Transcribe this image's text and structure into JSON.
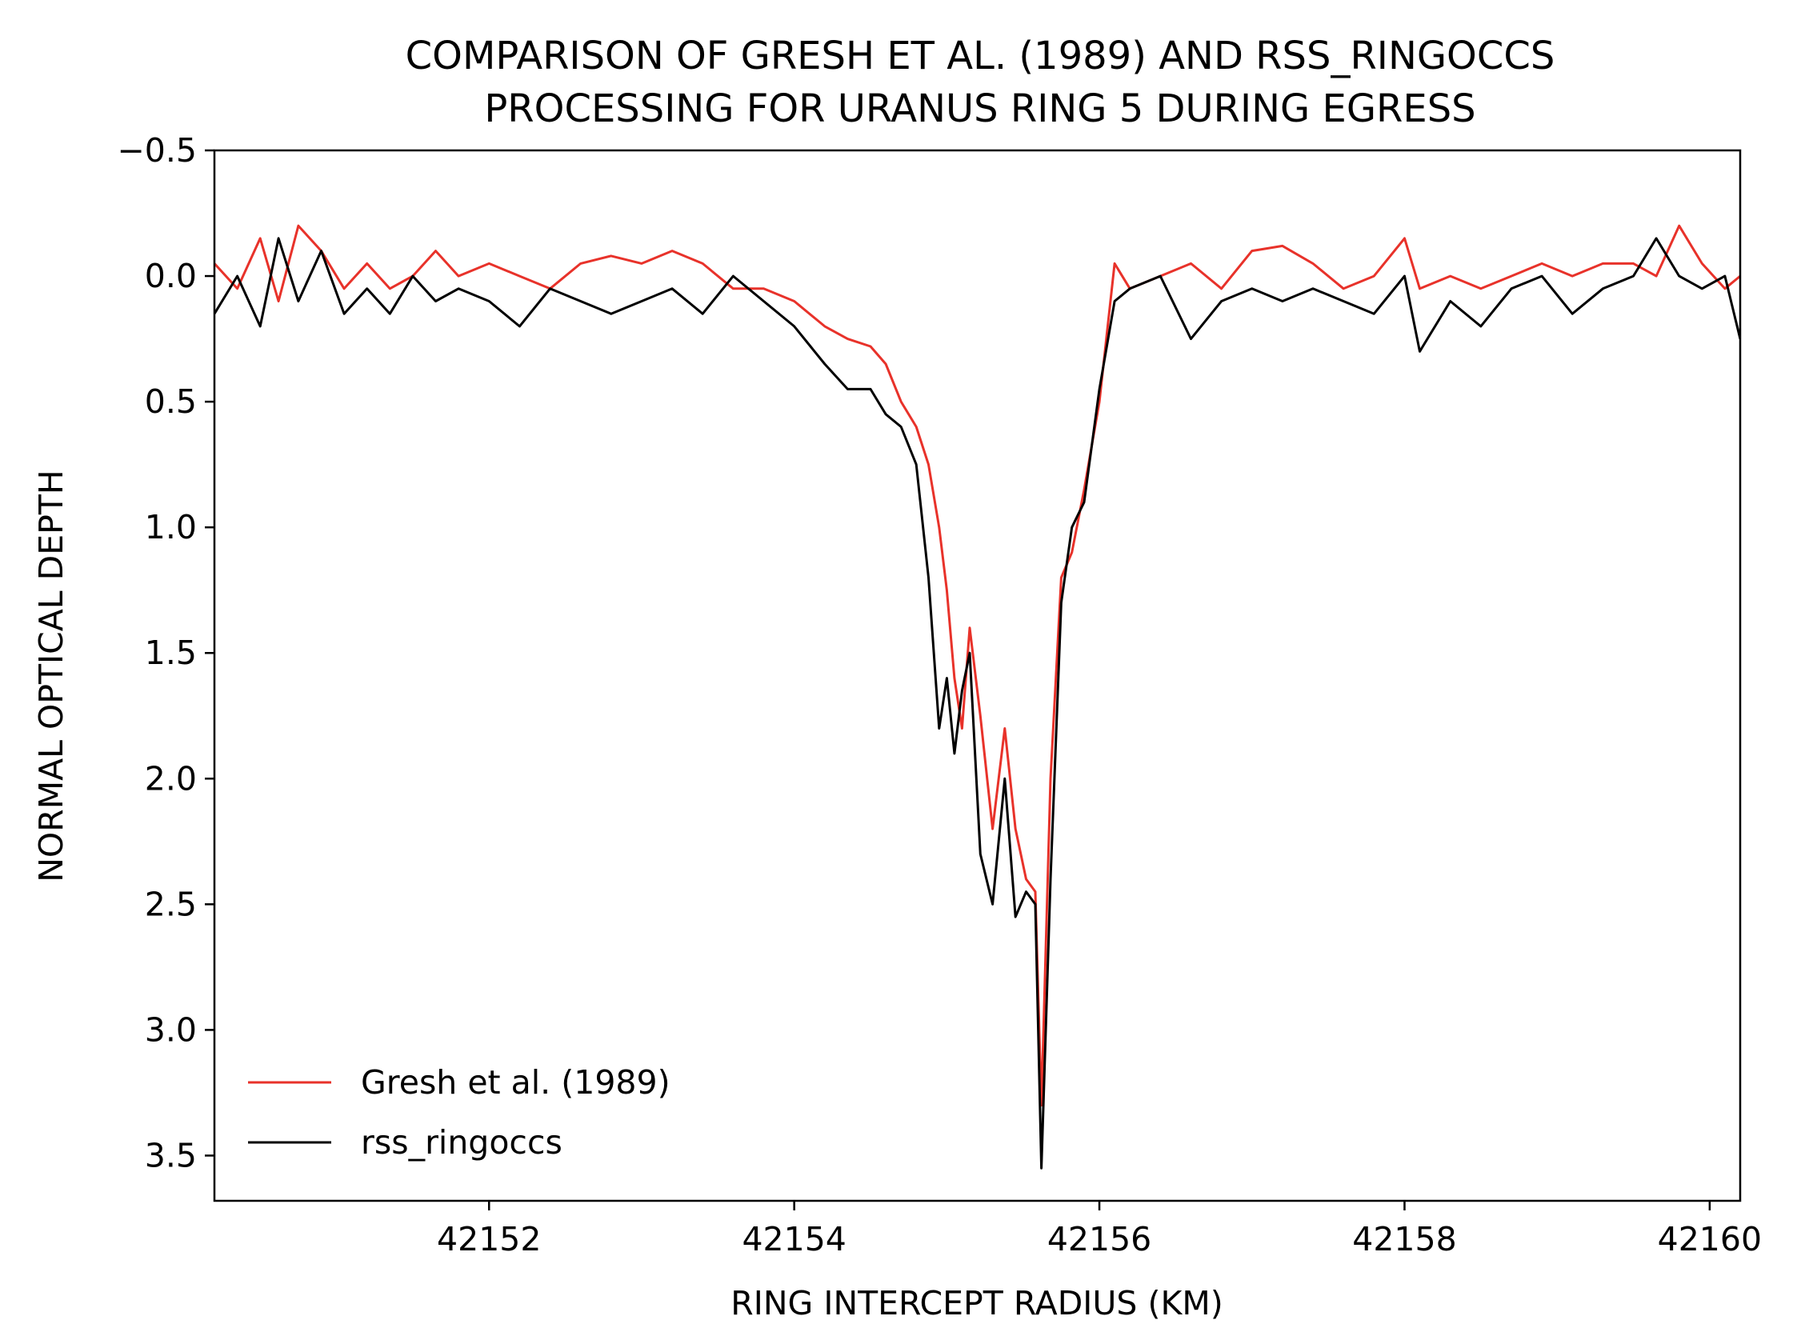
{
  "chart_data": {
    "type": "line",
    "title": "COMPARISON OF GRESH ET AL. (1989) AND RSS_RINGOCCS PROCESSING FOR URANUS RING 5 DURING EGRESS",
    "title_lines": [
      "COMPARISON OF GRESH ET AL. (1989) AND RSS_RINGOCCS",
      "PROCESSING FOR URANUS RING 5 DURING EGRESS"
    ],
    "xlabel": "RING INTERCEPT RADIUS (KM)",
    "ylabel": "NORMAL OPTICAL DEPTH",
    "xlim": [
      42150.2,
      42160.2
    ],
    "ylim": [
      3.68,
      -0.5
    ],
    "y_inverted": true,
    "xticks": [
      42152,
      42154,
      42156,
      42158,
      42160
    ],
    "xtick_labels": [
      "42152",
      "42154",
      "42156",
      "42158",
      "42160"
    ],
    "yticks": [
      -0.5,
      0.0,
      0.5,
      1.0,
      1.5,
      2.0,
      2.5,
      3.0,
      3.5
    ],
    "ytick_labels": [
      "−0.5",
      "0.0",
      "0.5",
      "1.0",
      "1.5",
      "2.0",
      "2.5",
      "3.0",
      "3.5"
    ],
    "grid": false,
    "legend_position": "lower-left",
    "series": [
      {
        "name": "Gresh et al. (1989)",
        "color": "#e8322a",
        "x": [
          42150.2,
          42150.35,
          42150.5,
          42150.62,
          42150.75,
          42150.9,
          42151.05,
          42151.2,
          42151.35,
          42151.5,
          42151.65,
          42151.8,
          42152.0,
          42152.2,
          42152.4,
          42152.6,
          42152.8,
          42153.0,
          42153.2,
          42153.4,
          42153.6,
          42153.8,
          42154.0,
          42154.2,
          42154.35,
          42154.5,
          42154.6,
          42154.7,
          42154.8,
          42154.88,
          42154.95,
          42155.0,
          42155.05,
          42155.1,
          42155.15,
          42155.22,
          42155.3,
          42155.38,
          42155.45,
          42155.52,
          42155.58,
          42155.62,
          42155.68,
          42155.75,
          42155.82,
          42155.9,
          42156.0,
          42156.1,
          42156.2,
          42156.4,
          42156.6,
          42156.8,
          42157.0,
          42157.2,
          42157.4,
          42157.6,
          42157.8,
          42158.0,
          42158.1,
          42158.3,
          42158.5,
          42158.7,
          42158.9,
          42159.1,
          42159.3,
          42159.5,
          42159.65,
          42159.8,
          42159.95,
          42160.1,
          42160.2
        ],
        "y": [
          -0.05,
          0.05,
          -0.15,
          0.1,
          -0.2,
          -0.1,
          0.05,
          -0.05,
          0.05,
          0.0,
          -0.1,
          0.0,
          -0.05,
          0.0,
          0.05,
          -0.05,
          -0.08,
          -0.05,
          -0.1,
          -0.05,
          0.05,
          0.05,
          0.1,
          0.2,
          0.25,
          0.28,
          0.35,
          0.5,
          0.6,
          0.75,
          1.0,
          1.25,
          1.6,
          1.8,
          1.4,
          1.75,
          2.2,
          1.8,
          2.2,
          2.4,
          2.45,
          3.3,
          2.0,
          1.2,
          1.1,
          0.85,
          0.5,
          -0.05,
          0.05,
          0.0,
          -0.05,
          0.05,
          -0.1,
          -0.12,
          -0.05,
          0.05,
          0.0,
          -0.15,
          0.05,
          0.0,
          0.05,
          0.0,
          -0.05,
          0.0,
          -0.05,
          -0.05,
          0.0,
          -0.2,
          -0.05,
          0.05,
          0.0
        ]
      },
      {
        "name": "rss_ringoccs",
        "color": "#000000",
        "x": [
          42150.2,
          42150.35,
          42150.5,
          42150.62,
          42150.75,
          42150.9,
          42151.05,
          42151.2,
          42151.35,
          42151.5,
          42151.65,
          42151.8,
          42152.0,
          42152.2,
          42152.4,
          42152.6,
          42152.8,
          42153.0,
          42153.2,
          42153.4,
          42153.6,
          42153.8,
          42154.0,
          42154.2,
          42154.35,
          42154.5,
          42154.6,
          42154.7,
          42154.8,
          42154.88,
          42154.95,
          42155.0,
          42155.05,
          42155.1,
          42155.15,
          42155.22,
          42155.3,
          42155.38,
          42155.45,
          42155.52,
          42155.58,
          42155.62,
          42155.68,
          42155.75,
          42155.82,
          42155.9,
          42156.0,
          42156.1,
          42156.2,
          42156.4,
          42156.6,
          42156.8,
          42157.0,
          42157.2,
          42157.4,
          42157.6,
          42157.8,
          42158.0,
          42158.1,
          42158.3,
          42158.5,
          42158.7,
          42158.9,
          42159.1,
          42159.3,
          42159.5,
          42159.65,
          42159.8,
          42159.95,
          42160.1,
          42160.2
        ],
        "y": [
          0.15,
          0.0,
          0.2,
          -0.15,
          0.1,
          -0.1,
          0.15,
          0.05,
          0.15,
          0.0,
          0.1,
          0.05,
          0.1,
          0.2,
          0.05,
          0.1,
          0.15,
          0.1,
          0.05,
          0.15,
          0.0,
          0.1,
          0.2,
          0.35,
          0.45,
          0.45,
          0.55,
          0.6,
          0.75,
          1.2,
          1.8,
          1.6,
          1.9,
          1.65,
          1.5,
          2.3,
          2.5,
          2.0,
          2.55,
          2.45,
          2.5,
          3.55,
          2.4,
          1.3,
          1.0,
          0.9,
          0.45,
          0.1,
          0.05,
          0.0,
          0.25,
          0.1,
          0.05,
          0.1,
          0.05,
          0.1,
          0.15,
          0.0,
          0.3,
          0.1,
          0.2,
          0.05,
          0.0,
          0.15,
          0.05,
          0.0,
          -0.15,
          0.0,
          0.05,
          0.0,
          0.25
        ]
      }
    ]
  }
}
